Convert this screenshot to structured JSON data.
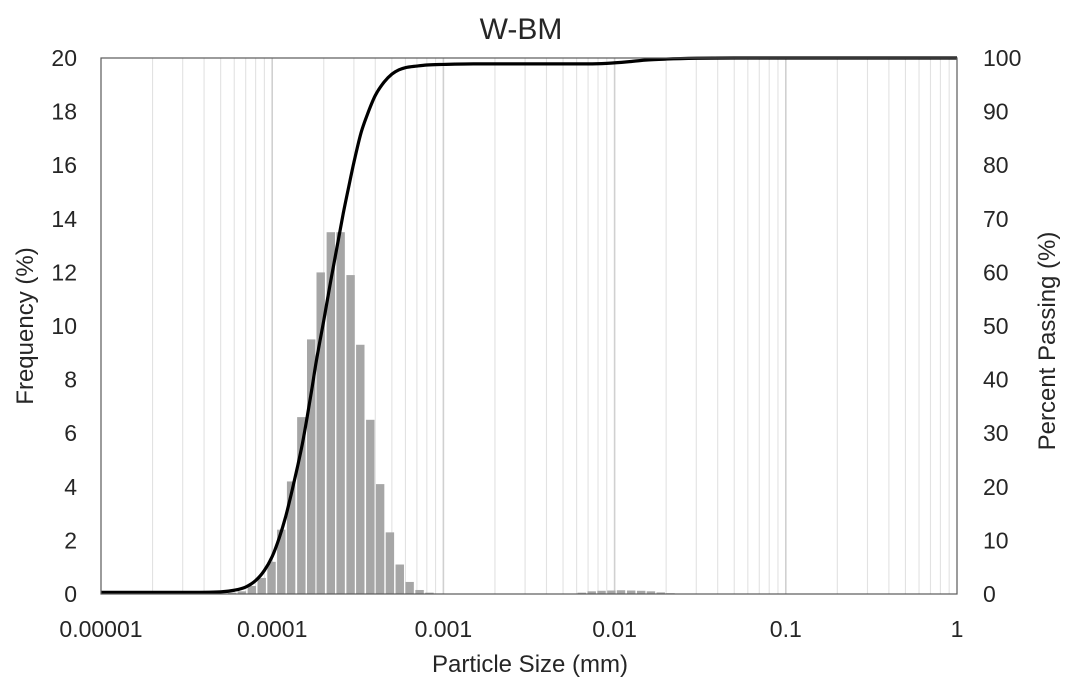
{
  "chart_data": {
    "type": "bar",
    "title": "W-BM",
    "xlabel": "Particle Size (mm)",
    "ylabel": "Frequency (%)",
    "y2label": "Percent Passing (%)",
    "x_scale": "log",
    "xlim": [
      1e-05,
      1
    ],
    "ylim": [
      0,
      20
    ],
    "y2lim": [
      0,
      100
    ],
    "x_tick_labels": [
      "0.00001",
      "0.0001",
      "0.001",
      "0.01",
      "0.1",
      "1"
    ],
    "y_tick_labels": [
      "0",
      "2",
      "4",
      "6",
      "8",
      "10",
      "12",
      "14",
      "16",
      "18",
      "20"
    ],
    "y2_tick_labels": [
      "0",
      "10",
      "20",
      "30",
      "40",
      "50",
      "60",
      "70",
      "80",
      "90",
      "100"
    ],
    "grid": "vertical",
    "legend": "none",
    "series": [
      {
        "kind": "bar",
        "axis": "left",
        "color": "#a6a6a6",
        "x": [
          5.83e-05,
          6.65e-05,
          7.6e-05,
          8.68e-05,
          9.91e-05,
          0.000113,
          0.000129,
          0.000148,
          0.000169,
          0.000192,
          0.00022,
          0.000251,
          0.000287,
          0.000327,
          0.000374,
          0.000427,
          0.000487,
          0.000556,
          0.000635,
          0.000726,
          0.000829,
          0.000946,
          0.00108,
          0.00123,
          0.00141,
          0.00643,
          0.00735,
          0.00839,
          0.00958,
          0.0109,
          0.0125,
          0.0143,
          0.0163,
          0.0186,
          0.0212
        ],
        "values": [
          0.05,
          0.1,
          0.3,
          0.6,
          1.2,
          2.4,
          4.2,
          6.6,
          9.5,
          12.0,
          13.5,
          13.5,
          11.9,
          9.3,
          6.5,
          4.1,
          2.3,
          1.1,
          0.45,
          0.15,
          0.05,
          0.02,
          0.01,
          0.01,
          0.01,
          0.05,
          0.1,
          0.12,
          0.13,
          0.14,
          0.13,
          0.12,
          0.1,
          0.06,
          0.03
        ]
      },
      {
        "kind": "line",
        "axis": "right",
        "color": "#000000",
        "x": [
          1e-05,
          3e-05,
          5e-05,
          6e-05,
          7e-05,
          8e-05,
          9e-05,
          0.0001,
          0.00011,
          0.00012,
          0.00013,
          0.00014,
          0.00015,
          0.00016,
          0.00017,
          0.00018,
          0.0002,
          0.00022,
          0.00024,
          0.00026,
          0.00028,
          0.0003,
          0.00033,
          0.00036,
          0.0004,
          0.00045,
          0.0005,
          0.00055,
          0.0006,
          0.0007,
          0.0008,
          0.001,
          0.0015,
          0.002,
          0.003,
          0.005,
          0.007,
          0.009,
          0.012,
          0.015,
          0.02,
          0.03,
          0.05,
          0.1,
          0.5,
          1
        ],
        "values": [
          0.3,
          0.3,
          0.4,
          0.7,
          1.3,
          2.5,
          4.4,
          7.0,
          10.5,
          14.5,
          19.0,
          23.5,
          28.0,
          33.0,
          38.0,
          43.0,
          51.0,
          58.5,
          65.0,
          71.0,
          76.0,
          80.5,
          86.0,
          89.5,
          93.0,
          95.5,
          97.0,
          97.8,
          98.2,
          98.5,
          98.7,
          98.8,
          98.9,
          98.9,
          98.9,
          98.9,
          98.9,
          99.0,
          99.3,
          99.6,
          99.8,
          99.95,
          100,
          100,
          100,
          100
        ]
      }
    ]
  }
}
